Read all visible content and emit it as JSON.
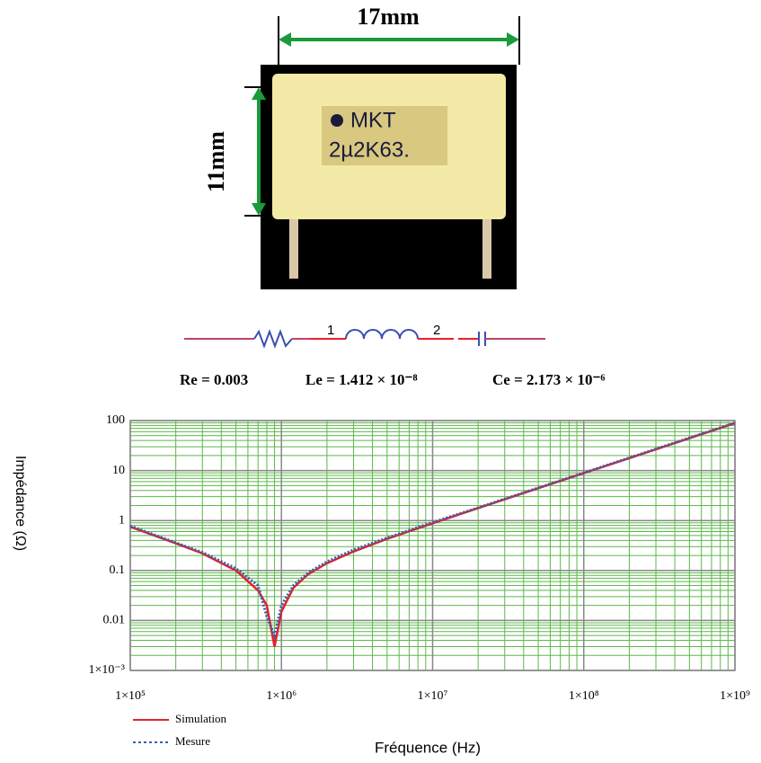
{
  "photo": {
    "width_label": "17mm",
    "height_label": "11mm",
    "marking_line1": "MKT",
    "marking_line2": "2µ2K63."
  },
  "circuit": {
    "node1": "1",
    "node2": "2",
    "parameters": [
      "Re = 0.003",
      "Le = 1.412 × 10⁻⁸",
      "Ce = 2.173 × 10⁻⁶"
    ]
  },
  "chart_data": {
    "type": "line",
    "log_x": true,
    "log_y": true,
    "grid": true,
    "x_label": "Fréquence (Hz)",
    "y_label": "Impédance (Ω)",
    "x": [
      100000,
      200000,
      300000,
      500000,
      700000,
      800000,
      900000,
      1000000,
      1200000,
      1500000,
      2000000,
      3000000,
      5000000,
      10000000,
      20000000,
      50000000,
      100000000,
      200000000,
      500000000,
      1000000000
    ],
    "series": [
      {
        "name": "Simulation",
        "color": "#e8202a",
        "style": "solid",
        "values": [
          0.75,
          0.35,
          0.22,
          0.1,
          0.04,
          0.02,
          0.003,
          0.015,
          0.045,
          0.084,
          0.14,
          0.24,
          0.43,
          0.88,
          1.77,
          4.44,
          8.87,
          17.7,
          44.4,
          88.7
        ]
      },
      {
        "name": "Mesure",
        "color": "#3a5fb0",
        "style": "dotted",
        "values": [
          0.78,
          0.36,
          0.23,
          0.11,
          0.05,
          0.012,
          0.005,
          0.02,
          0.05,
          0.09,
          0.15,
          0.26,
          0.45,
          0.92,
          1.8,
          4.5,
          9,
          18,
          45,
          90
        ]
      }
    ],
    "xlim": [
      100000,
      1000000000
    ],
    "xticks": [
      {
        "value": 100000,
        "label": "1×10⁵"
      },
      {
        "value": 1000000,
        "label": "1×10⁶"
      },
      {
        "value": 10000000,
        "label": "1×10⁷"
      },
      {
        "value": 100000000,
        "label": "1×10⁸"
      },
      {
        "value": 1000000000,
        "label": "1×10⁹"
      }
    ],
    "ylim": [
      0.001,
      100
    ],
    "yticks": [
      {
        "value": 0.001,
        "label": "1×10⁻³"
      },
      0.01,
      0.1,
      1,
      10,
      100
    ]
  }
}
